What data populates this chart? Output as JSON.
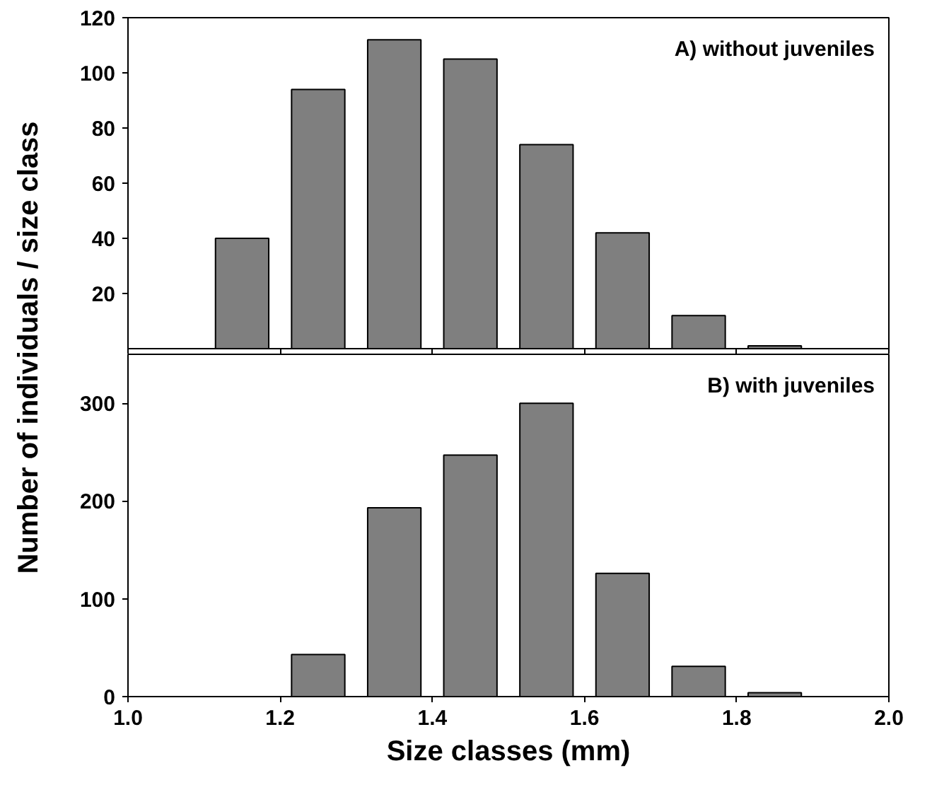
{
  "chart_data": [
    {
      "type": "bar",
      "title": "A) without juveniles",
      "ylabel": "Number of individuals / size class",
      "x": [
        1.15,
        1.25,
        1.35,
        1.45,
        1.55,
        1.65,
        1.75,
        1.85
      ],
      "series": [
        {
          "color": "#7f7f7f",
          "values": [
            40,
            94,
            112,
            105,
            74,
            42,
            12,
            1
          ]
        }
      ],
      "xlim": [
        1.0,
        2.0
      ],
      "xticks": [
        {
          "value": 1.0,
          "label": null
        },
        {
          "value": 1.2,
          "label": null
        },
        {
          "value": 1.4,
          "label": null
        },
        {
          "value": 1.6,
          "label": null
        },
        {
          "value": 1.8,
          "label": null
        },
        {
          "value": 2.0,
          "label": null
        }
      ],
      "ylim": [
        0,
        120
      ],
      "yticks": [
        20,
        40,
        60,
        80,
        100,
        120
      ],
      "tick_labels": "y",
      "grid": false
    },
    {
      "type": "bar",
      "title": "B) with juveniles",
      "xlabel": "Size classes (mm)",
      "x": [
        1.25,
        1.35,
        1.45,
        1.55,
        1.65,
        1.75,
        1.85
      ],
      "series": [
        {
          "color": "#7f7f7f",
          "values": [
            43,
            193,
            247,
            300,
            126,
            31,
            4
          ]
        }
      ],
      "xlim": [
        1.0,
        2.0
      ],
      "xticks": [
        {
          "value": 1.0,
          "label": "1.0"
        },
        1.2,
        1.4,
        1.6,
        1.8,
        {
          "value": 2.0,
          "label": "2.0"
        }
      ],
      "ylim": [
        0,
        350
      ],
      "yticks": [
        0,
        100,
        200,
        300
      ],
      "grid": false
    }
  ]
}
